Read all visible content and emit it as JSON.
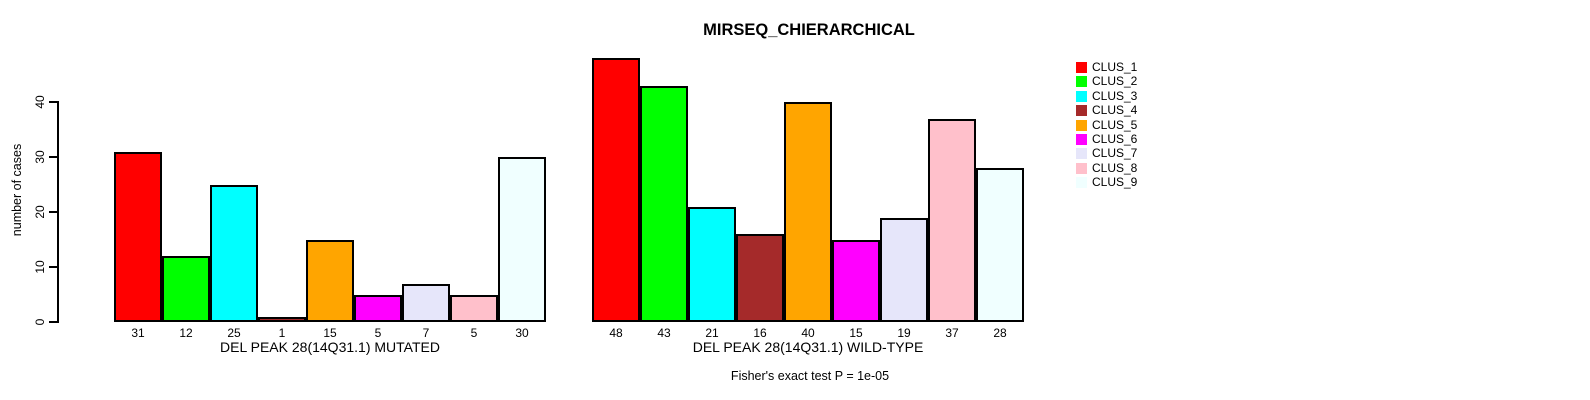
{
  "title": "MIRSEQ_CHIERARCHICAL",
  "footnote": "Fisher's exact test P = 1e-05",
  "y_axis": {
    "label": "number of cases",
    "ticks": [
      0,
      10,
      20,
      30,
      40
    ]
  },
  "legend": {
    "position": "right",
    "items": [
      {
        "label": "CLUS_1",
        "color": "#FF0000"
      },
      {
        "label": "CLUS_2",
        "color": "#00FF00"
      },
      {
        "label": "CLUS_3",
        "color": "#00FFFF"
      },
      {
        "label": "CLUS_4",
        "color": "#A52A2A"
      },
      {
        "label": "CLUS_5",
        "color": "#FFA500"
      },
      {
        "label": "CLUS_6",
        "color": "#FF00FF"
      },
      {
        "label": "CLUS_7",
        "color": "#E6E6FA"
      },
      {
        "label": "CLUS_8",
        "color": "#FFC0CB"
      },
      {
        "label": "CLUS_9",
        "color": "#F0FFFF"
      }
    ]
  },
  "chart_data": [
    {
      "type": "bar",
      "title": "MIRSEQ_CHIERARCHICAL",
      "xlabel": "DEL PEAK 28(14Q31.1) MUTATED",
      "ylabel": "number of cases",
      "categories": [
        "CLUS_1",
        "CLUS_2",
        "CLUS_3",
        "CLUS_4",
        "CLUS_5",
        "CLUS_6",
        "CLUS_7",
        "CLUS_8",
        "CLUS_9"
      ],
      "values": [
        31,
        12,
        25,
        1,
        15,
        5,
        7,
        5,
        30
      ],
      "colors": [
        "#FF0000",
        "#00FF00",
        "#00FFFF",
        "#A52A2A",
        "#FFA500",
        "#FF00FF",
        "#E6E6FA",
        "#FFC0CB",
        "#F0FFFF"
      ],
      "ylim": [
        0,
        40
      ],
      "yticks": [
        0,
        10,
        20,
        30,
        40
      ],
      "grid": false,
      "bar_labels_below": true
    },
    {
      "type": "bar",
      "title": "MIRSEQ_CHIERARCHICAL",
      "xlabel": "DEL PEAK 28(14Q31.1) WILD-TYPE",
      "ylabel": "number of cases",
      "categories": [
        "CLUS_1",
        "CLUS_2",
        "CLUS_3",
        "CLUS_4",
        "CLUS_5",
        "CLUS_6",
        "CLUS_7",
        "CLUS_8",
        "CLUS_9"
      ],
      "values": [
        48,
        43,
        21,
        16,
        40,
        15,
        19,
        37,
        28
      ],
      "colors": [
        "#FF0000",
        "#00FF00",
        "#00FFFF",
        "#A52A2A",
        "#FFA500",
        "#FF00FF",
        "#E6E6FA",
        "#FFC0CB",
        "#F0FFFF"
      ],
      "ylim": [
        0,
        40
      ],
      "yticks": [
        0,
        10,
        20,
        30,
        40
      ],
      "grid": false,
      "bar_labels_below": true
    }
  ],
  "annotation": "Fisher's exact test P = 1e-05"
}
